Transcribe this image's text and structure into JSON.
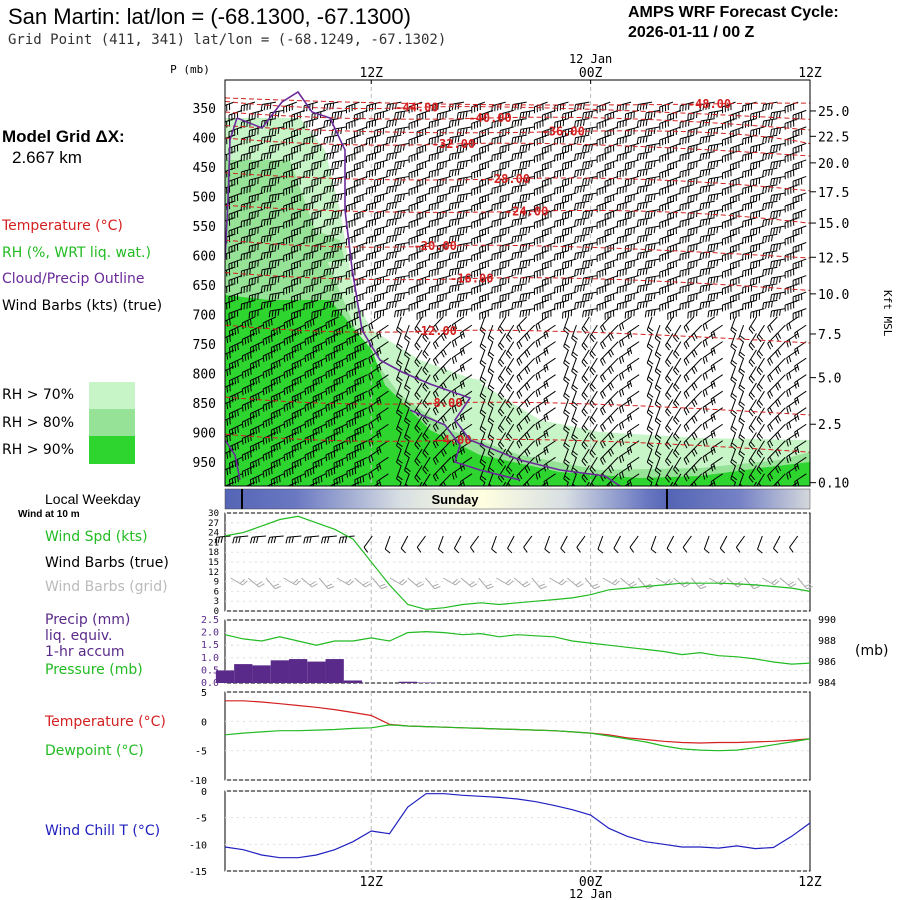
{
  "header": {
    "title": "San Martin:  lat/lon = (-68.1300, -67.1300)",
    "grid_point": "Grid Point (411, 341) lat/lon = (-68.1249, -67.1302)",
    "cycle_line1": "AMPS WRF Forecast Cycle:",
    "cycle_line2": "2026-01-11 / 00  Z"
  },
  "sidebar": {
    "model_grid_label": "Model Grid ΔX:",
    "model_grid_value": "2.667 km",
    "legend": [
      {
        "text": "Temperature (°C)",
        "color": "#d42020"
      },
      {
        "text": "RH (%, WRT liq. wat.)",
        "color": "#22bb22"
      },
      {
        "text": "Cloud/Precip Outline",
        "color": "#6a2a9a"
      },
      {
        "text": "Wind Barbs (kts) (true)",
        "color": "#000000"
      }
    ],
    "rh_legend": [
      {
        "text": "RH > 70%",
        "color": "#c8f5c8"
      },
      {
        "text": "RH > 80%",
        "color": "#96e296"
      },
      {
        "text": "RH > 90%",
        "color": "#2fd52f"
      }
    ]
  },
  "panel_labels": {
    "local_weekday": "Local Weekday",
    "wind_at_10m": "Wind at 10 m",
    "wind_spd": "Wind Spd (kts)",
    "wind_barbs_true": "Wind Barbs (true)",
    "wind_barbs_grid": "Wind Barbs (grid)",
    "precip_1": "Precip (mm)",
    "precip_2": "liq. equiv.",
    "precip_3": "1-hr accum",
    "pressure": "Pressure (mb)",
    "mb_unit": "(mb)",
    "temperature": "Temperature (°C)",
    "dewpoint": "Dewpoint (°C)",
    "wind_chill": "Wind Chill T (°C)"
  },
  "colors": {
    "temperature": "#d42020",
    "rh_green": "#22bb22",
    "cloud_outline": "#6a2a9a",
    "precip_bar": "#5a2a8a",
    "wind_chill": "#2020c0",
    "grid_barb": "#aaaaaa",
    "weekday_band": "#5565b5"
  },
  "chart_data": [
    {
      "type": "heatmap",
      "name": "time-pressure cross section",
      "x_unit": "forecast hour",
      "xlim": [
        4,
        36
      ],
      "top_axis_ticks": [
        {
          "hour": 12,
          "label": "12Z"
        },
        {
          "hour": 24,
          "label": "00Z"
        },
        {
          "hour": 36,
          "label": "12Z"
        }
      ],
      "date_label": "12 Jan",
      "ylabel_left": "P (mb)",
      "ylabel_right": "Kft MSL",
      "pressure_ticks": [
        350,
        400,
        450,
        500,
        550,
        600,
        650,
        700,
        750,
        800,
        850,
        900,
        950
      ],
      "height_ticks": [
        {
          "label": "25.0",
          "p": 355
        },
        {
          "label": "22.5",
          "p": 398
        },
        {
          "label": "20.0",
          "p": 443
        },
        {
          "label": "17.5",
          "p": 492
        },
        {
          "label": "15.0",
          "p": 545
        },
        {
          "label": "12.5",
          "p": 603
        },
        {
          "label": "10.0",
          "p": 665
        },
        {
          "label": "7.5",
          "p": 733
        },
        {
          "label": "5.0",
          "p": 807
        },
        {
          "label": "2.5",
          "p": 886
        },
        {
          "label": "0.10",
          "p": 985
        }
      ],
      "temperature_contours": [
        {
          "label": "-48.00",
          "hour": 30.5,
          "p": 343
        },
        {
          "label": "-44.00",
          "hour": 14.5,
          "p": 349
        },
        {
          "label": "-40.00",
          "hour": 18.5,
          "p": 367
        },
        {
          "label": "-36.00",
          "hour": 22.5,
          "p": 390
        },
        {
          "label": "-32.00",
          "hour": 16.5,
          "p": 411
        },
        {
          "label": "-28.00",
          "hour": 19.5,
          "p": 470
        },
        {
          "label": "-24.00",
          "hour": 20.5,
          "p": 525
        },
        {
          "label": "-20.00",
          "hour": 15.5,
          "p": 584
        },
        {
          "label": "-16.00",
          "hour": 17.5,
          "p": 639
        },
        {
          "label": "-12.00",
          "hour": 15.5,
          "p": 728
        },
        {
          "label": "-8.00",
          "hour": 16.0,
          "p": 850
        },
        {
          "label": "-4.00",
          "hour": 16.5,
          "p": 913
        }
      ]
    },
    {
      "type": "line",
      "name": "wind speed",
      "ylabel": "Wind Spd (kts)",
      "ylim": [
        0,
        30
      ],
      "yticks": [
        0,
        3,
        6,
        9,
        12,
        15,
        18,
        21,
        24,
        27,
        30
      ],
      "x": [
        4,
        5,
        6,
        7,
        8,
        9,
        10,
        11,
        12,
        13,
        14,
        15,
        16,
        17,
        18,
        19,
        20,
        21,
        22,
        23,
        24,
        25,
        26,
        27,
        28,
        29,
        30,
        31,
        32,
        33,
        34,
        35,
        36
      ],
      "values": [
        23,
        24,
        26,
        28,
        29,
        27,
        25,
        22,
        15,
        8,
        2,
        0.5,
        1,
        2,
        2.5,
        2,
        2.5,
        3,
        3.5,
        4,
        5,
        6.5,
        7,
        7.5,
        8,
        8.5,
        8.5,
        8.5,
        8.3,
        8,
        7.5,
        7,
        6
      ]
    },
    {
      "type": "bar",
      "name": "1-hr precipitation",
      "ylabel": "Precip (mm)",
      "ylim": [
        0,
        2.5
      ],
      "yticks": [
        0.0,
        0.5,
        1.0,
        1.5,
        2.0,
        2.5
      ],
      "x": [
        4,
        5,
        6,
        7,
        8,
        9,
        10,
        11,
        12,
        13,
        14,
        15,
        16
      ],
      "values": [
        0.5,
        0.75,
        0.7,
        0.9,
        0.95,
        0.85,
        0.95,
        0.1,
        0.0,
        0.0,
        0.05,
        0.02,
        0.0
      ]
    },
    {
      "type": "line",
      "name": "pressure",
      "ylabel": "Pressure (mb)",
      "ylim": [
        984,
        990
      ],
      "yticks": [
        984,
        986,
        988,
        990
      ],
      "x": [
        4,
        5,
        6,
        7,
        8,
        9,
        10,
        11,
        12,
        13,
        14,
        15,
        16,
        17,
        18,
        19,
        20,
        21,
        22,
        23,
        24,
        25,
        26,
        27,
        28,
        29,
        30,
        31,
        32,
        33,
        34,
        35,
        36
      ],
      "values": [
        988.6,
        988.2,
        988.0,
        988.4,
        988.0,
        987.6,
        988.0,
        988.0,
        988.3,
        988.0,
        988.8,
        988.9,
        988.8,
        988.6,
        988.7,
        988.4,
        988.6,
        988.5,
        988.4,
        988.0,
        987.8,
        987.6,
        987.4,
        987.2,
        987.0,
        986.7,
        986.9,
        986.6,
        986.5,
        986.3,
        986.0,
        985.8,
        985.9
      ]
    },
    {
      "type": "line",
      "name": "temperature and dewpoint",
      "ylim": [
        -10,
        5
      ],
      "yticks": [
        5,
        0,
        -5,
        -10
      ],
      "x": [
        4,
        5,
        6,
        7,
        8,
        9,
        10,
        11,
        12,
        13,
        14,
        15,
        16,
        17,
        18,
        19,
        20,
        21,
        22,
        23,
        24,
        25,
        26,
        27,
        28,
        29,
        30,
        31,
        32,
        33,
        34,
        35,
        36
      ],
      "series": [
        {
          "name": "Temperature (°C)",
          "color": "#d42020",
          "values": [
            3.5,
            3.5,
            3.3,
            3.0,
            2.7,
            2.4,
            2.0,
            1.5,
            1.0,
            -0.5,
            -0.8,
            -0.9,
            -1.0,
            -1.1,
            -1.2,
            -1.3,
            -1.4,
            -1.5,
            -1.6,
            -1.8,
            -2.0,
            -2.3,
            -2.8,
            -3.1,
            -3.4,
            -3.6,
            -3.7,
            -3.6,
            -3.6,
            -3.5,
            -3.4,
            -3.2,
            -3.0
          ]
        },
        {
          "name": "Dewpoint (°C)",
          "color": "#22bb22",
          "values": [
            -2.3,
            -2.0,
            -1.8,
            -1.6,
            -1.6,
            -1.5,
            -1.4,
            -1.2,
            -1.1,
            -0.6,
            -0.8,
            -0.9,
            -1.0,
            -1.1,
            -1.2,
            -1.3,
            -1.4,
            -1.5,
            -1.6,
            -1.8,
            -2.0,
            -2.5,
            -3.0,
            -3.5,
            -4.2,
            -4.7,
            -4.9,
            -5.0,
            -4.9,
            -4.5,
            -4.0,
            -3.5,
            -3.0
          ]
        }
      ]
    },
    {
      "type": "line",
      "name": "wind chill",
      "ylabel": "Wind Chill T (°C)",
      "ylim": [
        -15,
        0
      ],
      "yticks": [
        0,
        -5,
        -10,
        -15
      ],
      "x": [
        4,
        5,
        6,
        7,
        8,
        9,
        10,
        11,
        12,
        13,
        14,
        15,
        16,
        17,
        18,
        19,
        20,
        21,
        22,
        23,
        24,
        25,
        26,
        27,
        28,
        29,
        30,
        31,
        32,
        33,
        34,
        35,
        36
      ],
      "values": [
        -10.5,
        -11.0,
        -12.0,
        -12.5,
        -12.5,
        -12.0,
        -11.0,
        -9.5,
        -7.5,
        -8.0,
        -3.0,
        -0.5,
        -0.5,
        -0.8,
        -1.0,
        -1.2,
        -1.5,
        -2.0,
        -2.7,
        -3.5,
        -4.5,
        -7.0,
        -8.5,
        -9.5,
        -10.0,
        -10.5,
        -10.5,
        -10.7,
        -10.3,
        -10.8,
        -10.6,
        -8.5,
        -6.0
      ]
    }
  ]
}
